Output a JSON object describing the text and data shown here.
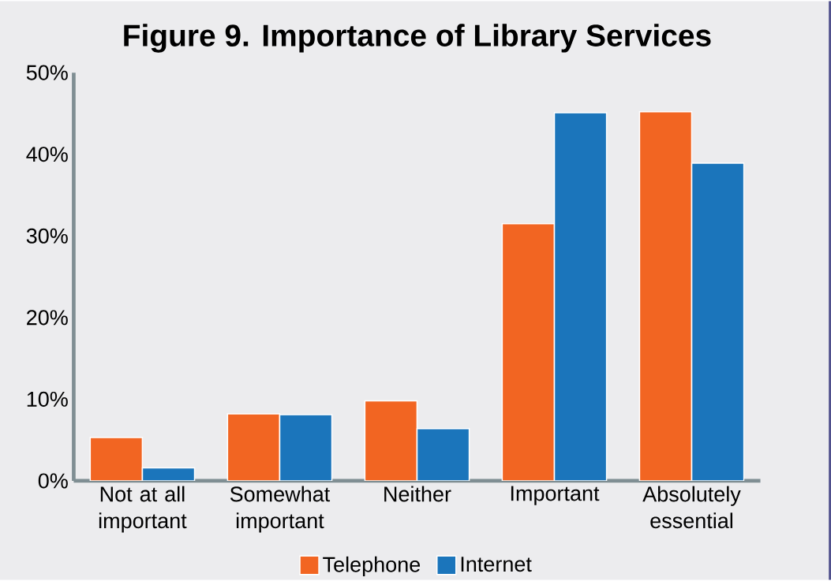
{
  "chart_data": {
    "type": "bar",
    "title": "Figure 9. Importance of Library Services",
    "categories": [
      "Not at all important",
      "Somewhat important",
      "Neither",
      "Important",
      "Absolutely essential"
    ],
    "series": [
      {
        "name": "Telephone",
        "color": "#f26522",
        "values": [
          5.3,
          8.2,
          9.8,
          31.5,
          45.2
        ]
      },
      {
        "name": "Internet",
        "color": "#1b75bb",
        "values": [
          1.6,
          8.1,
          6.4,
          45.1,
          38.9
        ]
      }
    ],
    "ylim": [
      0,
      50
    ],
    "yticks": [
      {
        "value": 0,
        "label": "0%"
      },
      {
        "value": 10,
        "label": "10%"
      },
      {
        "value": 20,
        "label": "20%"
      },
      {
        "value": 30,
        "label": "30%"
      },
      {
        "value": 40,
        "label": "40%"
      },
      {
        "value": 50,
        "label": "50%"
      }
    ],
    "legend": "bottom",
    "grid": false
  }
}
